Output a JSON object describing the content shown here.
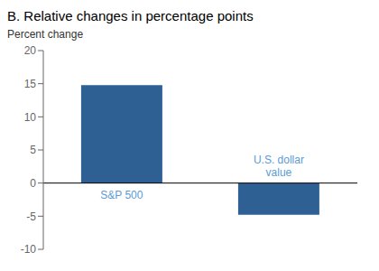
{
  "chart_data": {
    "type": "bar",
    "title": "B. Relative changes in percentage points",
    "ylabel": "Percent change",
    "categories": [
      null,
      null
    ],
    "values": [
      14.8,
      -4.8
    ],
    "color": "#2e6094",
    "annotations": [
      {
        "text": "S&P 500",
        "color": "#5b9bd5"
      },
      {
        "text": "U.S. dollar\nvalue",
        "color": "#5b9bd5"
      }
    ],
    "ylim": [
      -10,
      20
    ],
    "yticks": [
      -10,
      -5,
      0,
      5,
      10,
      15,
      20
    ],
    "grid": false,
    "tick_labels": "y"
  }
}
